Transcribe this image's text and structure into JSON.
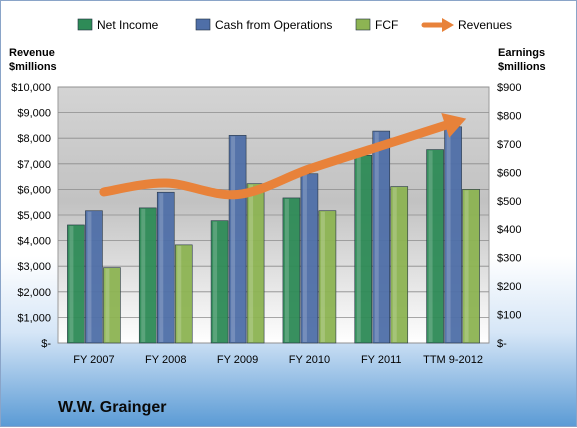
{
  "company": "W.W. Grainger",
  "chart_data": {
    "type": "bar",
    "categories": [
      "FY 2007",
      "FY 2008",
      "FY 2009",
      "FY 2010",
      "FY 2011",
      "TTM 9-2012"
    ],
    "series": [
      {
        "name": "Net Income",
        "kind": "bar",
        "axis": "right",
        "color": "#2e8b57",
        "values": [
          415,
          475,
          430,
          510,
          660,
          680
        ]
      },
      {
        "name": "Cash from Operations",
        "kind": "bar",
        "axis": "right",
        "color": "#4f6fa8",
        "values": [
          465,
          530,
          730,
          595,
          745,
          760
        ]
      },
      {
        "name": "FCF",
        "kind": "bar",
        "axis": "right",
        "color": "#8db453",
        "values": [
          265,
          345,
          560,
          465,
          550,
          540
        ]
      },
      {
        "name": "Revenues",
        "kind": "line-arrow",
        "axis": "left",
        "color": "#e8823a",
        "values": [
          5900,
          6250,
          5800,
          6800,
          7700,
          8550
        ]
      }
    ],
    "y_left": {
      "title_lines": [
        "Revenue",
        "$millions"
      ],
      "range": [
        0,
        10000
      ],
      "ticks": [
        "$-",
        "$1,000",
        "$2,000",
        "$3,000",
        "$4,000",
        "$5,000",
        "$6,000",
        "$7,000",
        "$8,000",
        "$9,000",
        "$10,000"
      ]
    },
    "y_right": {
      "title_lines": [
        "Earnings",
        "$millions"
      ],
      "range": [
        0,
        900
      ],
      "ticks": [
        "$-",
        "$100",
        "$200",
        "$300",
        "$400",
        "$500",
        "$600",
        "$700",
        "$800",
        "$900"
      ]
    },
    "legend_position": "top",
    "grid": true
  }
}
